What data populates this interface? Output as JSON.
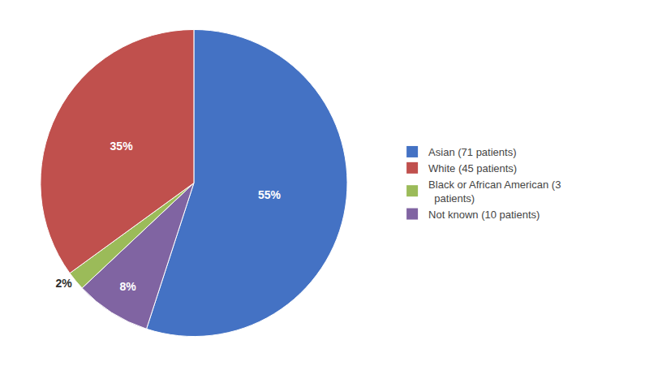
{
  "chart_data": {
    "type": "pie",
    "values": [
      55,
      8,
      2,
      35
    ],
    "value_labels": [
      "55%",
      "8%",
      "2%",
      "35%"
    ],
    "colors": [
      "#4472C4",
      "#8064A2",
      "#9BBB59",
      "#C0504D"
    ],
    "data_labels": true,
    "series": [
      {
        "name": "Asian (71 patients)",
        "color": "#4472C4"
      },
      {
        "name": "White (45 patients)",
        "color": "#C0504D"
      },
      {
        "name": "Black or African American (3\n  patients)",
        "color": "#9BBB59"
      },
      {
        "name": "Not known (10 patients)",
        "color": "#8064A2"
      }
    ]
  }
}
